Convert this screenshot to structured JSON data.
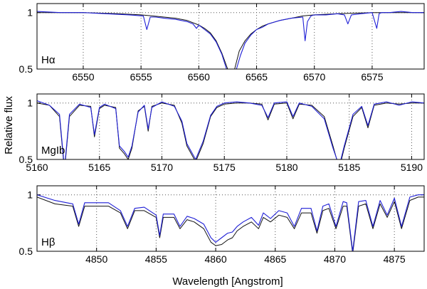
{
  "figure": {
    "ylabel": "Relative flux",
    "xlabel": "Wavelength [Angstrom]"
  },
  "colors": {
    "observed": "#1f1fd6",
    "model": "#111111"
  },
  "chart_data": [
    {
      "type": "line",
      "panel_label": "Hα",
      "xlim": [
        6546,
        6579.5
      ],
      "ylim": [
        0.5,
        1.08
      ],
      "xticks": [
        6550,
        6555,
        6560,
        6565,
        6570,
        6575
      ],
      "yticks": [
        0.5,
        1
      ],
      "ytick_labels": [
        "0.5",
        "1"
      ],
      "grid": true,
      "series": [
        {
          "role": "model",
          "x": [
            6546,
            6550,
            6553,
            6555,
            6556,
            6557,
            6558,
            6559,
            6560,
            6560.5,
            6561,
            6561.5,
            6562,
            6562.5,
            6562.8,
            6563.1,
            6563.5,
            6564,
            6564.5,
            6565,
            6565.5,
            6566,
            6567,
            6568,
            6569,
            6570,
            6572,
            6575,
            6579.5
          ],
          "y": [
            1.0,
            1.0,
            0.99,
            0.98,
            0.97,
            0.96,
            0.95,
            0.93,
            0.89,
            0.86,
            0.82,
            0.75,
            0.64,
            0.5,
            0.32,
            0.5,
            0.66,
            0.75,
            0.81,
            0.85,
            0.88,
            0.9,
            0.93,
            0.95,
            0.97,
            0.98,
            0.99,
            1.0,
            1.0
          ]
        },
        {
          "role": "observed",
          "x": [
            6546,
            6548,
            6550,
            6552,
            6554,
            6555.2,
            6555.5,
            6555.8,
            6556.3,
            6557,
            6558,
            6559,
            6559.5,
            6559.8,
            6560,
            6560.5,
            6561,
            6561.5,
            6562,
            6562.4,
            6562.8,
            6563.2,
            6563.6,
            6564,
            6564.5,
            6565,
            6565.5,
            6566,
            6567,
            6568,
            6569,
            6569.2,
            6569.4,
            6569.7,
            6570,
            6571,
            6572,
            6572.6,
            6572.9,
            6573.2,
            6574,
            6575,
            6575.4,
            6575.6,
            6575.8,
            6576.5,
            6577.5,
            6578.5,
            6579.5
          ],
          "y": [
            1.01,
            1.0,
            1.0,
            0.99,
            0.98,
            0.97,
            0.85,
            0.96,
            0.96,
            0.95,
            0.94,
            0.92,
            0.9,
            0.86,
            0.89,
            0.85,
            0.81,
            0.74,
            0.63,
            0.5,
            0.35,
            0.48,
            0.62,
            0.73,
            0.8,
            0.85,
            0.87,
            0.9,
            0.93,
            0.95,
            0.96,
            0.75,
            0.92,
            0.97,
            0.98,
            0.98,
            0.99,
            0.98,
            0.9,
            0.98,
            0.99,
            1.0,
            0.86,
            0.99,
            1.0,
            1.0,
            1.01,
            1.0,
            1.0
          ]
        }
      ]
    },
    {
      "type": "line",
      "panel_label": "MgIb",
      "xlim": [
        5160,
        5191
      ],
      "ylim": [
        0.5,
        1.08
      ],
      "xticks": [
        5160,
        5165,
        5170,
        5175,
        5180,
        5185,
        5190
      ],
      "yticks": [
        0.5,
        1
      ],
      "ytick_labels": [
        "0.5",
        "1"
      ],
      "grid": true,
      "series": [
        {
          "role": "model",
          "x": [
            5160,
            5161,
            5161.8,
            5162.2,
            5162.6,
            5163.4,
            5164.3,
            5164.6,
            5165,
            5165.4,
            5166.3,
            5166.6,
            5167,
            5167.3,
            5167.6,
            5168.1,
            5168.6,
            5168.9,
            5169.2,
            5170,
            5171,
            5171.6,
            5172,
            5172.7,
            5173.3,
            5173.9,
            5174.4,
            5175,
            5176,
            5177,
            5178,
            5178.5,
            5179,
            5180,
            5180.5,
            5181,
            5182,
            5183,
            5183.7,
            5184.2,
            5184.6,
            5185.3,
            5186,
            5186.5,
            5187,
            5188,
            5189,
            5190,
            5191
          ],
          "y": [
            1.0,
            0.98,
            0.88,
            0.4,
            0.88,
            0.98,
            0.97,
            0.7,
            0.95,
            0.98,
            0.96,
            0.6,
            0.55,
            0.5,
            0.6,
            0.93,
            0.97,
            0.75,
            0.97,
            1.0,
            0.98,
            0.82,
            0.62,
            0.48,
            0.64,
            0.88,
            0.96,
            0.99,
            1.0,
            1.0,
            0.99,
            0.85,
            0.99,
            1.0,
            0.86,
            0.99,
            0.98,
            0.88,
            0.62,
            0.42,
            0.6,
            0.88,
            0.96,
            0.78,
            0.98,
            1.0,
            0.99,
            1.0,
            1.0
          ]
        },
        {
          "role": "observed",
          "x": [
            5160,
            5161,
            5161.8,
            5162.2,
            5162.6,
            5163.4,
            5164.3,
            5164.6,
            5165,
            5165.4,
            5166.3,
            5166.6,
            5167,
            5167.3,
            5167.6,
            5168.1,
            5168.6,
            5168.9,
            5169.2,
            5170,
            5171,
            5171.6,
            5172,
            5172.7,
            5173.3,
            5173.9,
            5174.4,
            5175,
            5176,
            5177,
            5178,
            5178.5,
            5179,
            5180,
            5180.5,
            5181,
            5182,
            5183,
            5183.7,
            5184.2,
            5184.6,
            5185.3,
            5186,
            5186.5,
            5187,
            5188,
            5189,
            5190,
            5191
          ],
          "y": [
            1.02,
            0.98,
            0.9,
            0.42,
            0.9,
            0.99,
            0.96,
            0.72,
            0.96,
            0.99,
            0.95,
            0.62,
            0.57,
            0.52,
            0.62,
            0.92,
            0.98,
            0.77,
            0.96,
            1.01,
            0.97,
            0.84,
            0.64,
            0.5,
            0.66,
            0.89,
            0.97,
            1.0,
            1.01,
            1.0,
            0.98,
            0.87,
            1.0,
            1.01,
            0.88,
            1.0,
            0.97,
            0.86,
            0.6,
            0.44,
            0.62,
            0.9,
            0.97,
            0.8,
            0.99,
            1.01,
            0.98,
            1.01,
            1.0
          ]
        }
      ]
    },
    {
      "type": "line",
      "panel_label": "Hβ",
      "xlim": [
        4845,
        4877.5
      ],
      "ylim": [
        0.5,
        1.08
      ],
      "xticks": [
        4850,
        4855,
        4860,
        4865,
        4870,
        4875
      ],
      "yticks": [
        0.5,
        1
      ],
      "ytick_labels": [
        "0.5",
        "1"
      ],
      "grid": true,
      "series": [
        {
          "role": "model",
          "x": [
            4845,
            4846.5,
            4848,
            4848.5,
            4849,
            4851,
            4852,
            4852.6,
            4853.2,
            4854,
            4855,
            4855.3,
            4855.6,
            4856.5,
            4857,
            4857.6,
            4858.2,
            4859,
            4859.6,
            4860,
            4860.5,
            4861,
            4861.4,
            4861.8,
            4862.3,
            4863,
            4863.6,
            4864,
            4864.6,
            4865.3,
            4866,
            4866.6,
            4867.2,
            4868,
            4868.5,
            4869,
            4869.5,
            4870.1,
            4870.7,
            4871,
            4871.5,
            4872,
            4872.6,
            4873.2,
            4873.8,
            4874.4,
            4875,
            4875.6,
            4876.3,
            4877,
            4877.5
          ],
          "y": [
            0.98,
            0.92,
            0.9,
            0.72,
            0.9,
            0.9,
            0.84,
            0.7,
            0.86,
            0.86,
            0.8,
            0.62,
            0.8,
            0.8,
            0.7,
            0.78,
            0.76,
            0.7,
            0.58,
            0.55,
            0.56,
            0.6,
            0.62,
            0.68,
            0.72,
            0.76,
            0.7,
            0.8,
            0.76,
            0.82,
            0.8,
            0.7,
            0.84,
            0.84,
            0.66,
            0.86,
            0.88,
            0.7,
            0.9,
            0.9,
            0.48,
            0.9,
            0.92,
            0.7,
            0.92,
            0.8,
            0.94,
            0.7,
            0.95,
            0.98,
            0.98
          ]
        },
        {
          "role": "observed",
          "x": [
            4845,
            4846.5,
            4848,
            4848.5,
            4849,
            4851,
            4852,
            4852.6,
            4853.2,
            4854,
            4855,
            4855.3,
            4855.6,
            4856.5,
            4857,
            4857.6,
            4858.2,
            4859,
            4859.6,
            4860,
            4860.5,
            4861,
            4861.4,
            4861.8,
            4862.3,
            4863,
            4863.6,
            4864,
            4864.6,
            4865.3,
            4866,
            4866.6,
            4867.2,
            4868,
            4868.5,
            4869,
            4869.5,
            4870.1,
            4870.7,
            4871,
            4871.5,
            4872,
            4872.6,
            4873.2,
            4873.8,
            4874.4,
            4875,
            4875.6,
            4876.3,
            4877,
            4877.5
          ],
          "y": [
            1.0,
            0.95,
            0.92,
            0.74,
            0.93,
            0.93,
            0.86,
            0.72,
            0.88,
            0.89,
            0.82,
            0.64,
            0.83,
            0.83,
            0.72,
            0.81,
            0.79,
            0.74,
            0.62,
            0.58,
            0.62,
            0.66,
            0.67,
            0.72,
            0.76,
            0.8,
            0.73,
            0.84,
            0.79,
            0.86,
            0.84,
            0.72,
            0.88,
            0.88,
            0.68,
            0.9,
            0.92,
            0.72,
            0.94,
            0.93,
            0.5,
            0.94,
            0.95,
            0.72,
            0.95,
            0.82,
            0.97,
            0.72,
            0.98,
            1.0,
            1.0
          ]
        }
      ]
    }
  ]
}
